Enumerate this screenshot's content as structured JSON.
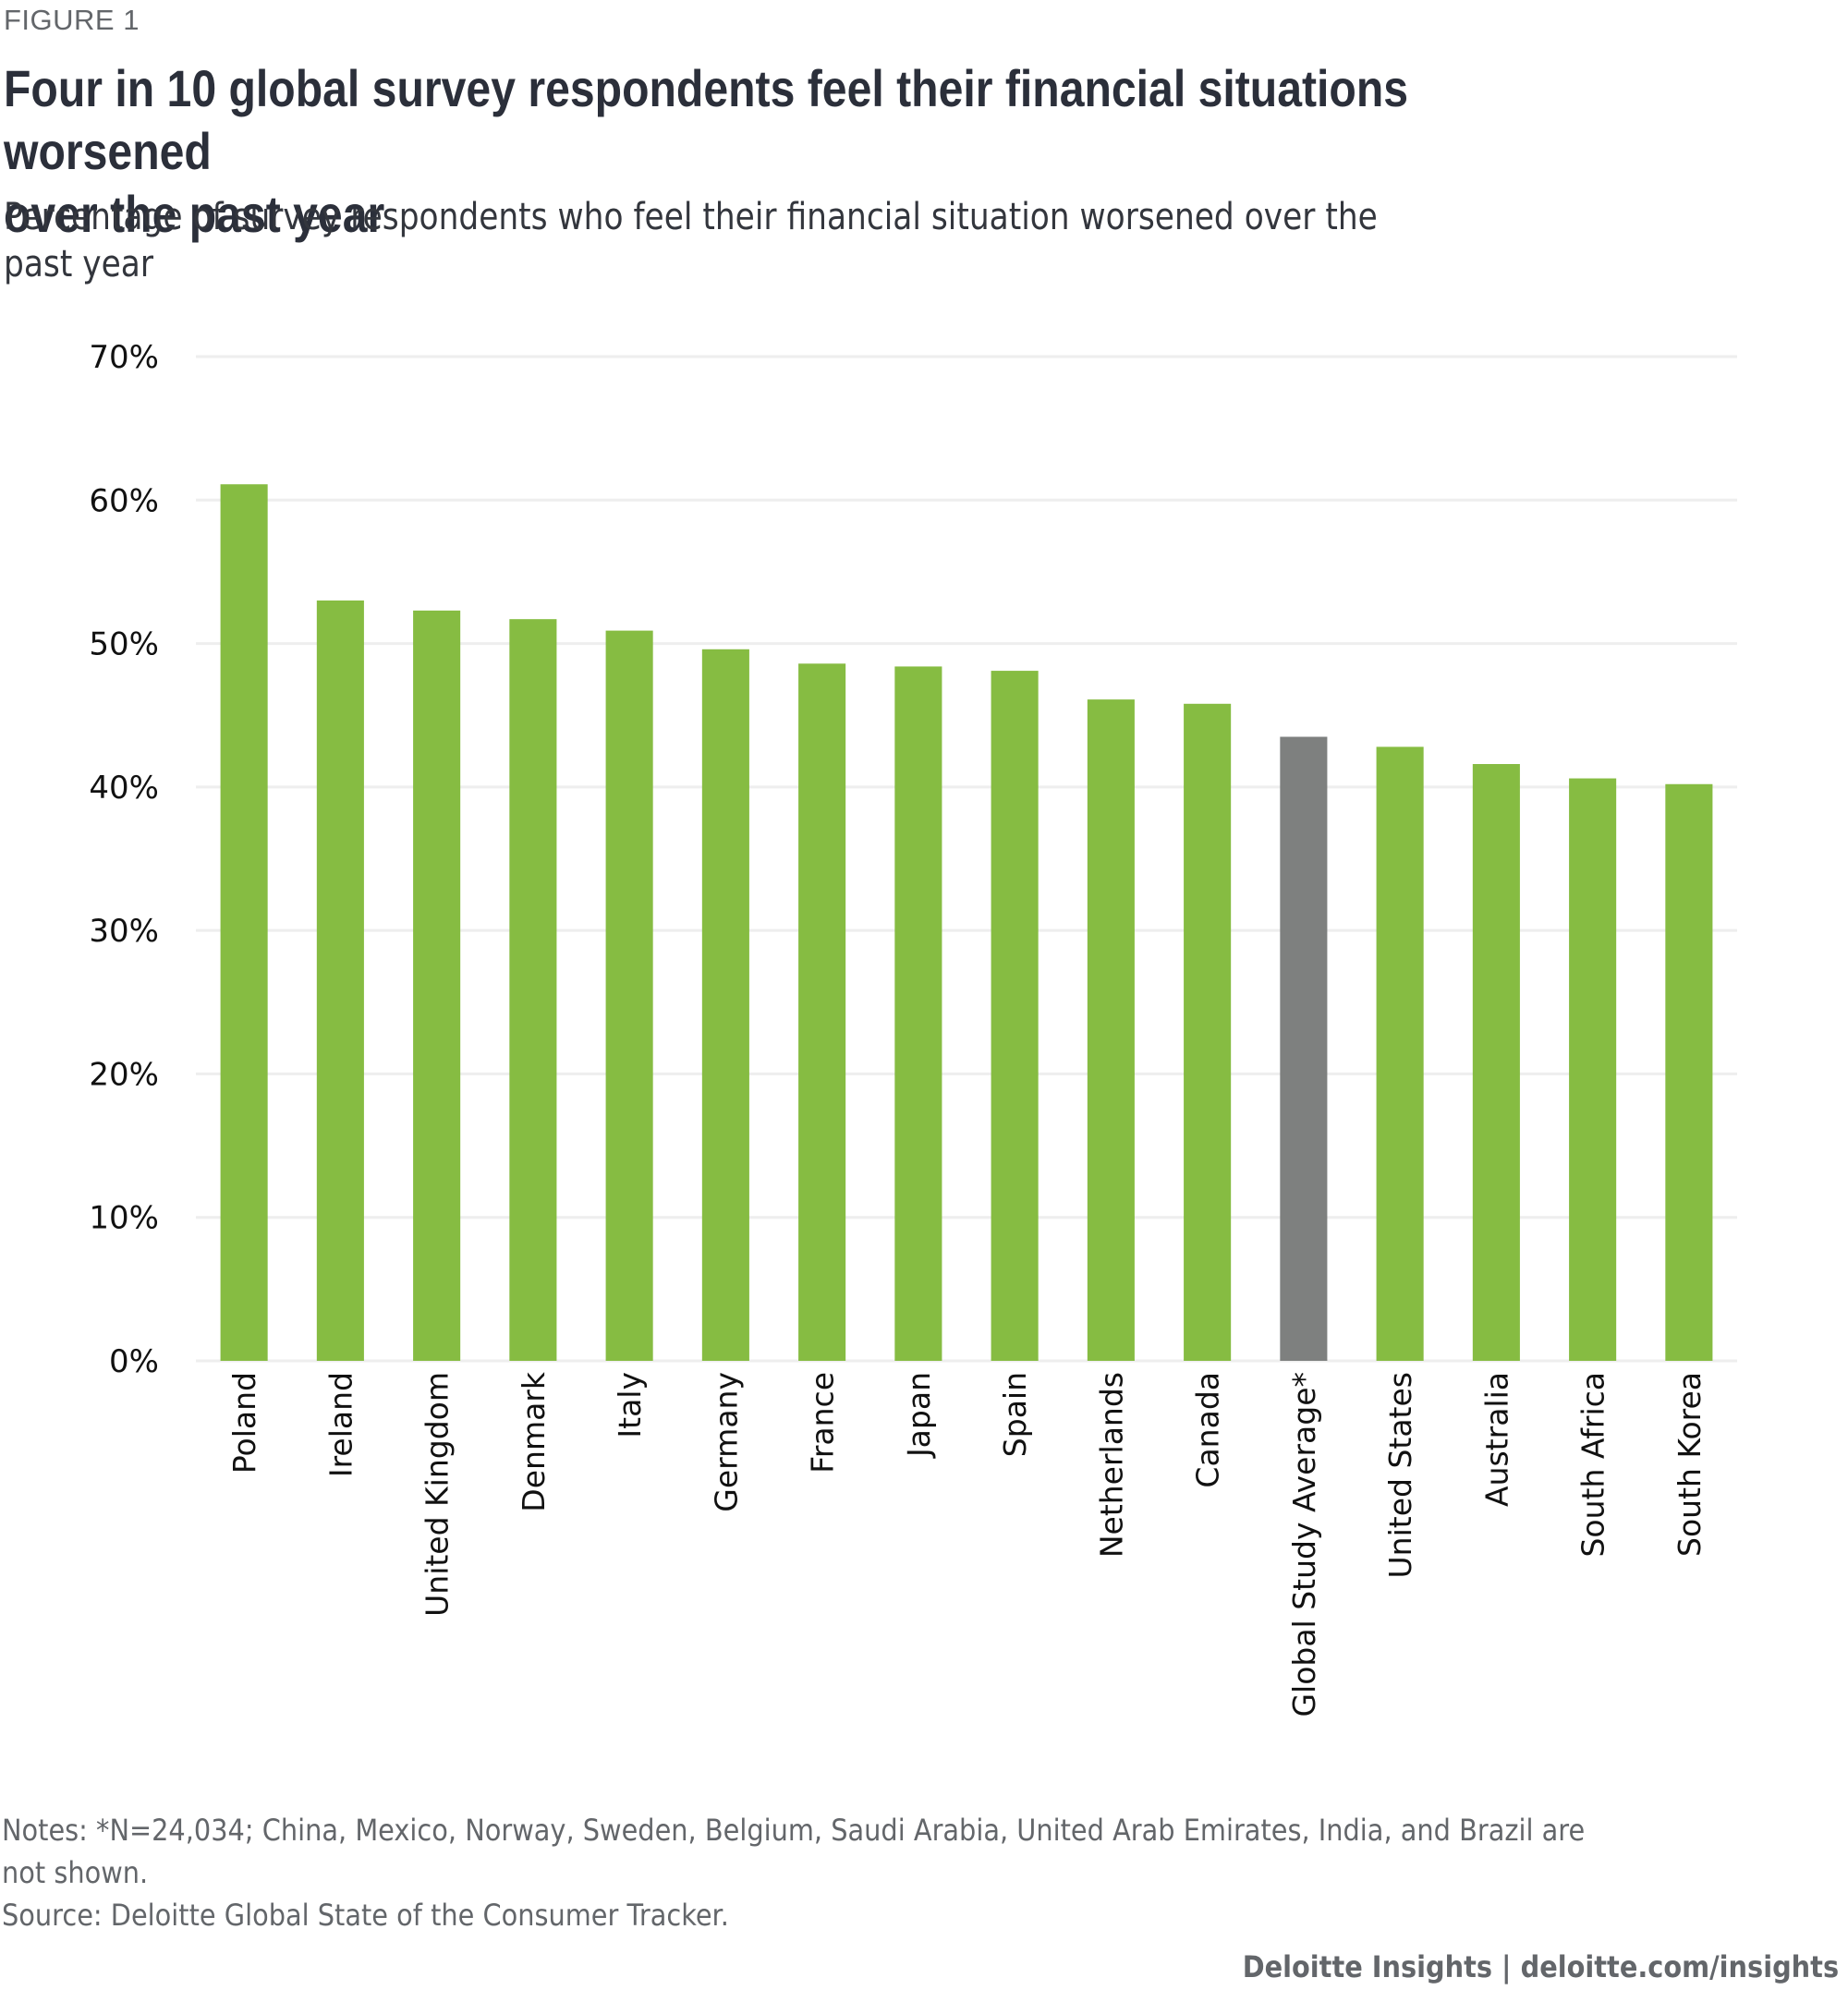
{
  "figure_label": "FIGURE 1",
  "title_line1": "Four in 10 global survey respondents feel their financial situations worsened",
  "title_line2": "over the past year",
  "subtitle_line1": "Percentage of survey respondents who feel their financial situation worsened over the",
  "subtitle_line2": "past year",
  "notes_line1": "Notes: *N=24,034; China, Mexico, Norway, Sweden, Belgium, Saudi Arabia, United Arab Emirates, India, and Brazil are",
  "notes_line2": "not shown.",
  "source": "Source: Deloitte Global State of the Consumer Tracker.",
  "credit": "Deloitte Insights | deloitte.com/insights",
  "colors": {
    "country_bar": "#86bc42",
    "average_bar": "#7e807f",
    "gridline": "#eeeeee"
  },
  "chart_data": {
    "type": "bar",
    "title": "Four in 10 global survey respondents feel their financial situations worsened over the past year",
    "subtitle": "Percentage of survey respondents who feel their financial situation worsened over the past year",
    "xlabel": "",
    "ylabel": "",
    "categories": [
      "Poland",
      "Ireland",
      "United Kingdom",
      "Denmark",
      "Italy",
      "Germany",
      "France",
      "Japan",
      "Spain",
      "Netherlands",
      "Canada",
      "Global Study Average*",
      "United States",
      "Australia",
      "South Africa",
      "South Korea"
    ],
    "values": [
      61.1,
      53.0,
      52.3,
      51.7,
      50.9,
      49.6,
      48.6,
      48.4,
      48.1,
      46.1,
      45.8,
      43.5,
      42.8,
      41.6,
      40.6,
      40.2
    ],
    "highlight": [
      "country",
      "country",
      "country",
      "country",
      "country",
      "country",
      "country",
      "country",
      "country",
      "country",
      "country",
      "average",
      "country",
      "country",
      "country",
      "country"
    ],
    "ylim": [
      0,
      70
    ],
    "yticks": [
      0,
      10,
      20,
      30,
      40,
      50,
      60,
      70
    ],
    "ytick_labels": [
      "0%",
      "10%",
      "20%",
      "30%",
      "40%",
      "50%",
      "60%",
      "70%"
    ],
    "grid": true,
    "legend": "none",
    "x_label_rotation": "vertical"
  }
}
